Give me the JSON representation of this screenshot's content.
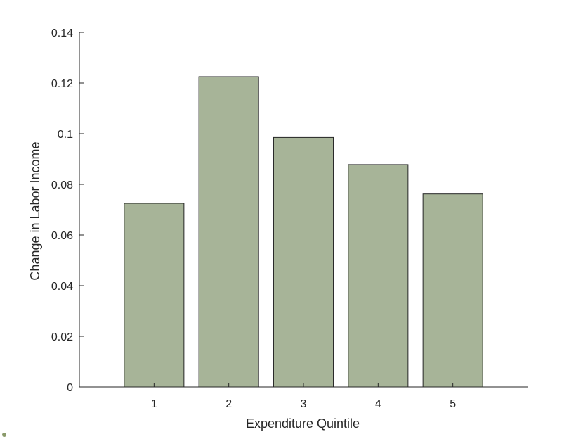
{
  "chart_data": {
    "type": "bar",
    "title": "",
    "xlabel": "Expenditure Quintile",
    "ylabel": "Change in Labor Income",
    "categories": [
      "1",
      "2",
      "3",
      "4",
      "5"
    ],
    "values": [
      0.0725,
      0.1225,
      0.0985,
      0.0878,
      0.0762
    ],
    "ylim": [
      0,
      0.14
    ],
    "yticks": [
      0,
      0.02,
      0.04,
      0.06,
      0.08,
      0.1,
      0.12,
      0.14
    ],
    "ytick_labels": [
      "0",
      "0.02",
      "0.04",
      "0.06",
      "0.08",
      "0.1",
      "0.12",
      "0.14"
    ],
    "grid": false,
    "colors": {
      "bar_fill": "#a7b498",
      "bar_edge": "#262626",
      "axis": "#262626",
      "dot": "#8a9a6a"
    }
  }
}
